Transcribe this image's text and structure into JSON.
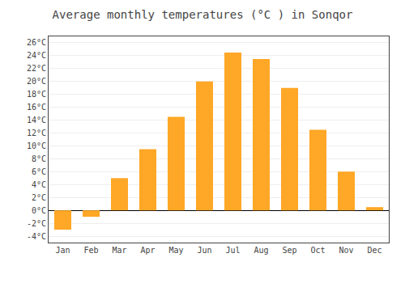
{
  "chart_data": {
    "type": "bar",
    "title": "Average monthly temperatures (°C ) in Sonqor",
    "categories": [
      "Jan",
      "Feb",
      "Mar",
      "Apr",
      "May",
      "Jun",
      "Jul",
      "Aug",
      "Sep",
      "Oct",
      "Nov",
      "Dec"
    ],
    "values": [
      -3.0,
      -1.0,
      5.0,
      9.5,
      14.5,
      20.0,
      24.5,
      23.5,
      19.0,
      12.5,
      6.0,
      0.5
    ],
    "color": "#FFA726",
    "ylim": [
      -5,
      27
    ],
    "yticks": [
      {
        "value": -4,
        "label": "-4°C"
      },
      {
        "value": -2,
        "label": "-2°C"
      },
      {
        "value": 0,
        "label": "0°C"
      },
      {
        "value": 2,
        "label": "2°C"
      },
      {
        "value": 4,
        "label": "4°C"
      },
      {
        "value": 6,
        "label": "6°C"
      },
      {
        "value": 8,
        "label": "8°C"
      },
      {
        "value": 10,
        "label": "10°C"
      },
      {
        "value": 12,
        "label": "12°C"
      },
      {
        "value": 14,
        "label": "14°C"
      },
      {
        "value": 16,
        "label": "16°C"
      },
      {
        "value": 18,
        "label": "18°C"
      },
      {
        "value": 20,
        "label": "20°C"
      },
      {
        "value": 22,
        "label": "22°C"
      },
      {
        "value": 24,
        "label": "24°C"
      },
      {
        "value": 26,
        "label": "26°C"
      }
    ],
    "grid": true
  }
}
